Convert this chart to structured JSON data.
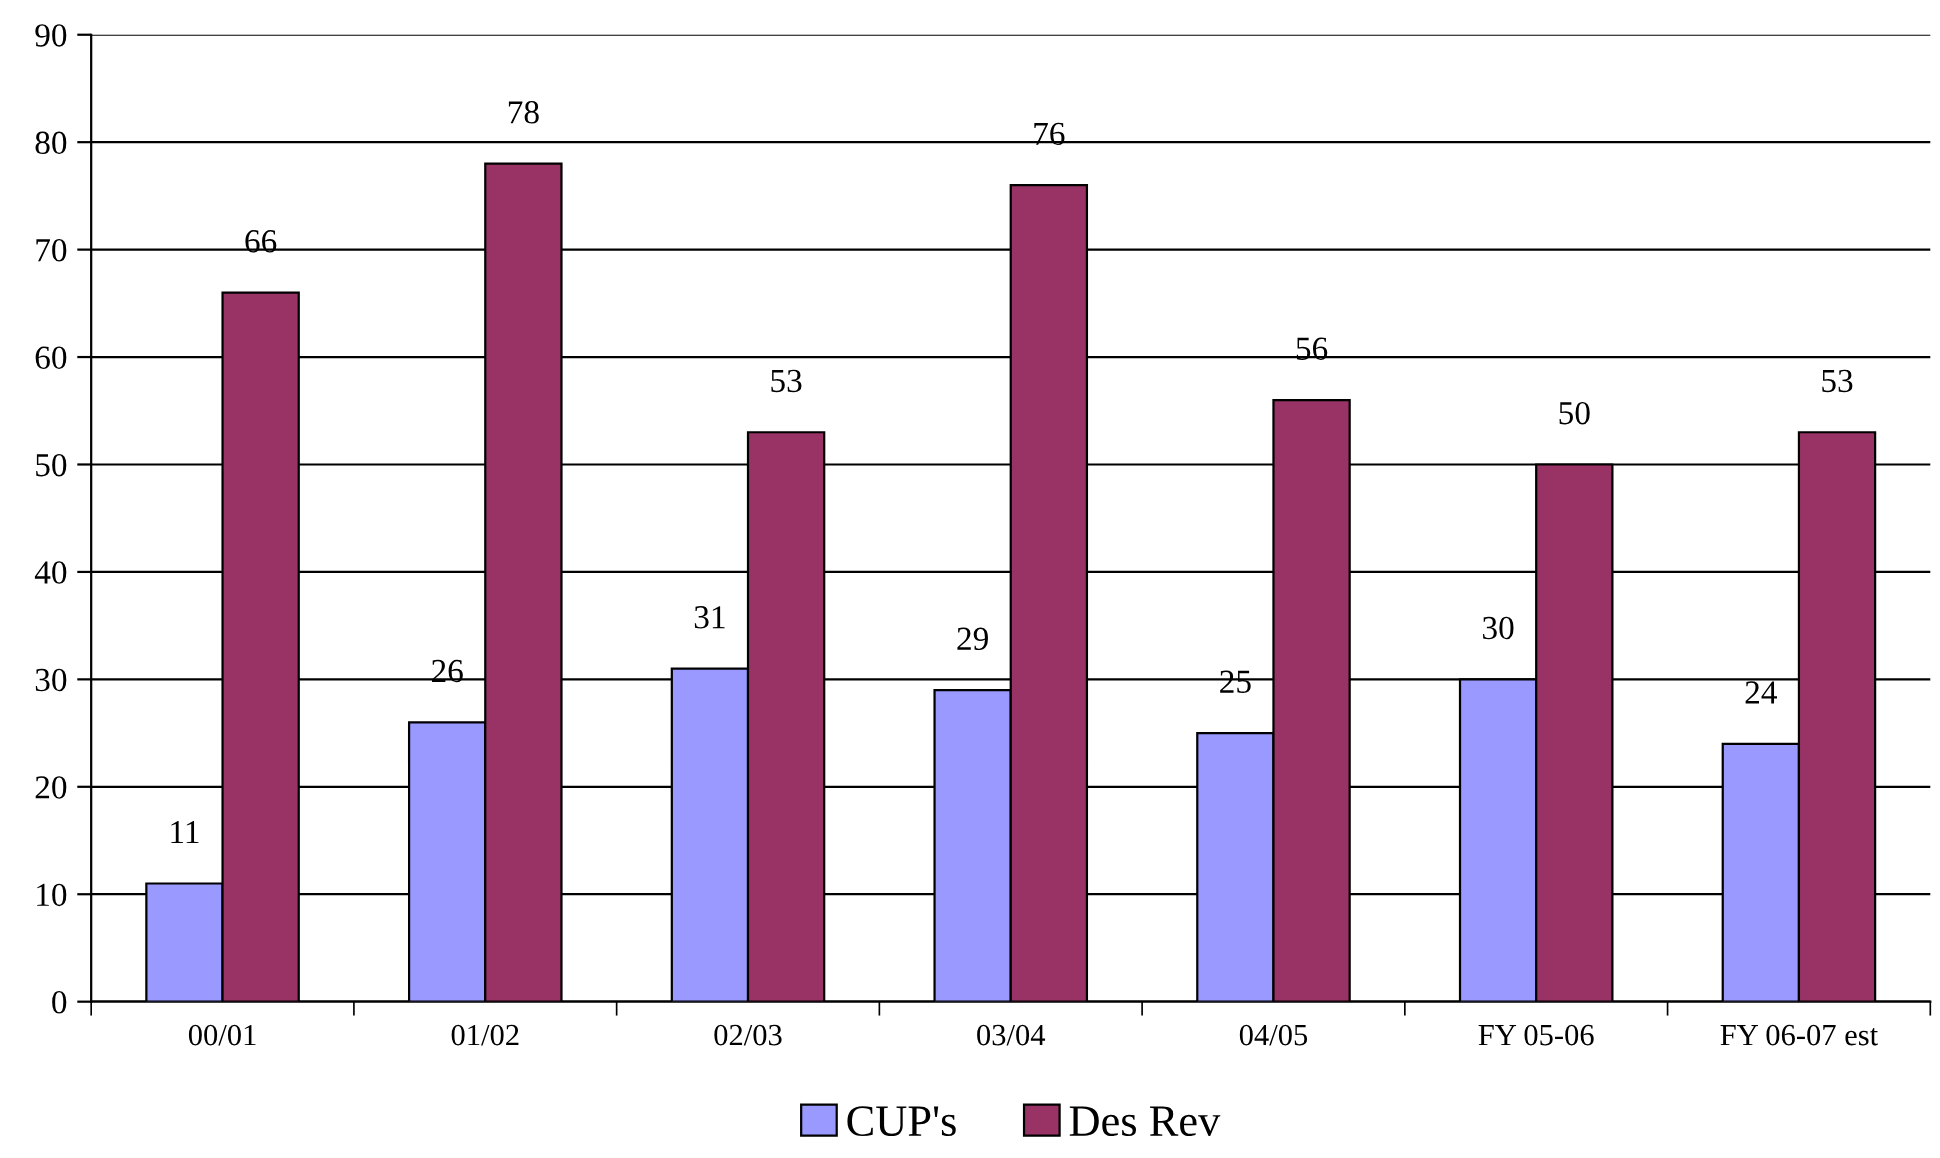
{
  "chart_data": {
    "type": "bar",
    "categories": [
      "00/01",
      "01/02",
      "02/03",
      "03/04",
      "04/05",
      "FY 05-06",
      "FY 06-07 est"
    ],
    "series": [
      {
        "name": "CUP's",
        "color": "#9999ff",
        "values": [
          11,
          26,
          31,
          29,
          25,
          30,
          24
        ]
      },
      {
        "name": "Des Rev",
        "color": "#993366",
        "values": [
          66,
          78,
          53,
          76,
          56,
          50,
          53
        ]
      }
    ],
    "ylim": [
      0,
      90
    ],
    "yticks": [
      0,
      10,
      20,
      30,
      40,
      50,
      60,
      70,
      80,
      90
    ],
    "grid": "y",
    "legend": "bottom",
    "data_labels": true
  }
}
